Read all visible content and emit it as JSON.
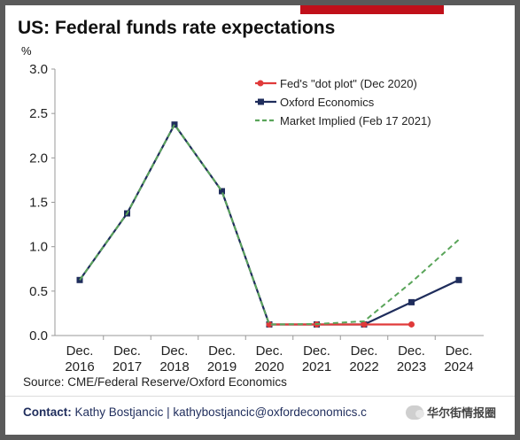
{
  "chart_data": {
    "type": "line",
    "title": "US: Federal funds rate expectations",
    "ylabel": "%",
    "xlabel": "",
    "ylim": [
      0,
      3.0
    ],
    "yticks": [
      "0.0",
      "0.5",
      "1.0",
      "1.5",
      "2.0",
      "2.5",
      "3.0"
    ],
    "categories": [
      [
        "Dec.",
        "2016"
      ],
      [
        "Dec.",
        "2017"
      ],
      [
        "Dec.",
        "2018"
      ],
      [
        "Dec.",
        "2019"
      ],
      [
        "Dec.",
        "2020"
      ],
      [
        "Dec.",
        "2021"
      ],
      [
        "Dec.",
        "2022"
      ],
      [
        "Dec.",
        "2023"
      ],
      [
        "Dec.",
        "2024"
      ]
    ],
    "legend_position": "top-right",
    "grid": false,
    "series": [
      {
        "name": "Fed's \"dot plot\" (Dec 2020)",
        "color": "#e03a3a",
        "style": "solid-dot",
        "values": [
          null,
          null,
          null,
          null,
          0.125,
          0.125,
          0.125,
          0.125,
          null
        ]
      },
      {
        "name": "Oxford Economics",
        "color": "#1f2d5c",
        "style": "solid-square",
        "values": [
          0.625,
          1.375,
          2.375,
          1.625,
          0.125,
          0.125,
          0.125,
          0.375,
          0.625
        ]
      },
      {
        "name": "Market Implied (Feb 17 2021)",
        "color": "#5aa55a",
        "style": "dashed",
        "values": [
          0.625,
          1.375,
          2.375,
          1.625,
          0.125,
          0.13,
          0.16,
          0.6,
          1.08
        ]
      }
    ]
  },
  "footer": {
    "source": "Source: CME/Federal Reserve/Oxford Economics",
    "contact_label": "Contact:",
    "contact_text": "Kathy Bostjancic | kathybostjancic@oxfordeconomics.c"
  },
  "watermark": {
    "text": "华尔街情报圈",
    "icon": "wechat-icon"
  }
}
